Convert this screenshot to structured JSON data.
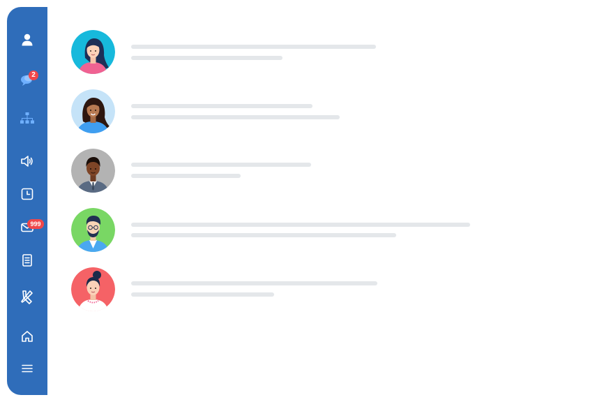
{
  "sidebar": {
    "items": [
      {
        "id": "profile",
        "icon": "user-icon"
      },
      {
        "id": "chat",
        "icon": "chat-bubbles-icon",
        "badge": "2"
      },
      {
        "id": "org",
        "icon": "org-chart-icon"
      },
      {
        "id": "announcements",
        "icon": "speaker-icon"
      },
      {
        "id": "clock",
        "icon": "clock-icon"
      },
      {
        "id": "mail",
        "icon": "envelope-icon",
        "badge": "999"
      },
      {
        "id": "notes",
        "icon": "clipboard-icon"
      },
      {
        "id": "tools",
        "icon": "tools-icon"
      },
      {
        "id": "home",
        "icon": "home-icon"
      },
      {
        "id": "menu",
        "icon": "hamburger-menu-icon"
      }
    ],
    "colors": {
      "background": "#2f6dba",
      "icon": "#ffffff",
      "badge": "#f0474a"
    }
  },
  "contacts": [
    {
      "avatar": "woman-dark-hair-pink-top-avatar",
      "avatar_bg": "#17b9dc"
    },
    {
      "avatar": "woman-long-curly-hair-blue-top-avatar",
      "avatar_bg": "#c5e3f8"
    },
    {
      "avatar": "man-suit-tie-avatar",
      "avatar_bg": "#b3b3b3"
    },
    {
      "avatar": "man-beard-glasses-avatar",
      "avatar_bg": "#79d764"
    },
    {
      "avatar": "woman-hair-bun-avatar",
      "avatar_bg": "#f56266"
    }
  ],
  "placeholder_color": "#e4e7ea"
}
